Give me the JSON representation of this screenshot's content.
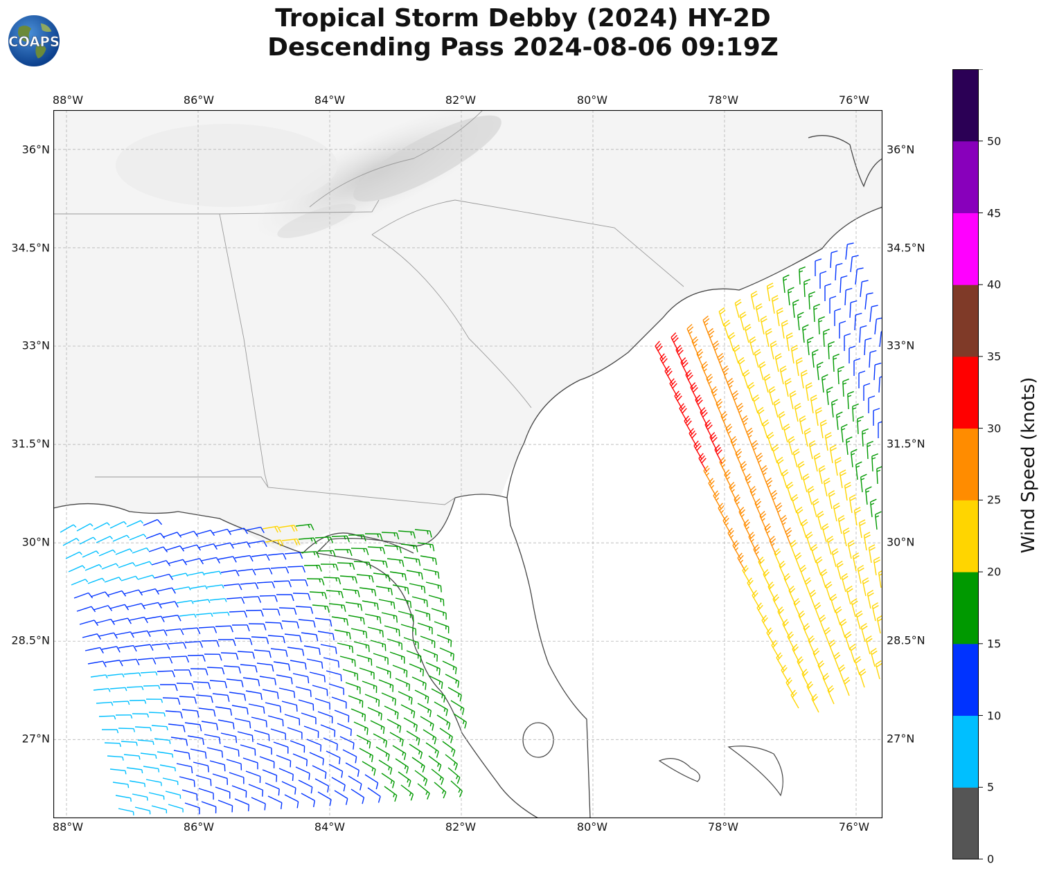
{
  "title_line1": "Tropical Storm Debby (2024) HY-2D",
  "title_line2": "Descending Pass 2024-08-06 09:19Z",
  "logo_text": "COAPS",
  "lon_labels": [
    "88°W",
    "86°W",
    "84°W",
    "82°W",
    "80°W",
    "78°W",
    "76°W"
  ],
  "lat_labels": [
    "36°N",
    "34.5°N",
    "33°N",
    "31.5°N",
    "30°N",
    "28.5°N",
    "27°N"
  ],
  "colorbar": {
    "label": "Wind Speed (knots)",
    "ticks": [
      "0",
      "5",
      "10",
      "15",
      "20",
      "25",
      "30",
      "35",
      "40",
      "45",
      "50"
    ],
    "bins": [
      {
        "min": 0,
        "max": 5,
        "color": "#555555"
      },
      {
        "min": 5,
        "max": 10,
        "color": "#00bfff"
      },
      {
        "min": 10,
        "max": 15,
        "color": "#0033ff"
      },
      {
        "min": 15,
        "max": 20,
        "color": "#009900"
      },
      {
        "min": 20,
        "max": 25,
        "color": "#ffd500"
      },
      {
        "min": 25,
        "max": 30,
        "color": "#ff8c00"
      },
      {
        "min": 30,
        "max": 35,
        "color": "#ff0000"
      },
      {
        "min": 35,
        "max": 40,
        "color": "#7f3a28"
      },
      {
        "min": 40,
        "max": 45,
        "color": "#ff00ff"
      },
      {
        "min": 45,
        "max": 50,
        "color": "#8800bb"
      },
      {
        "min": 50,
        "max": 55,
        "color": "#2b0055"
      }
    ]
  },
  "map_extent": {
    "lon_min": -88.2,
    "lon_max": -75.6,
    "lat_min": 25.8,
    "lat_max": 36.6
  }
}
